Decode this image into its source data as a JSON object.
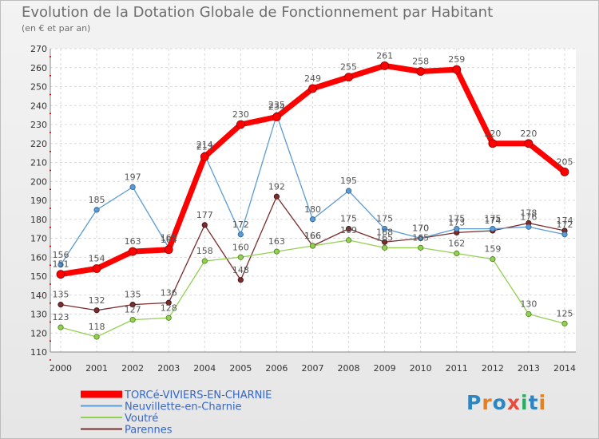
{
  "title": "Evolution de la Dotation Globale de Fonctionnement par Habitant",
  "subtitle": "(en € et par an)",
  "logo": {
    "text": "Proxiti",
    "colors": [
      "#2e86c1",
      "#e67e22",
      "#2e86c1",
      "#e74c3c",
      "#27ae60",
      "#2e86c1",
      "#e67e22"
    ]
  },
  "chart_data": {
    "type": "line",
    "title": "Evolution de la Dotation Globale de Fonctionnement par Habitant",
    "subtitle": "(en € et par an)",
    "xlabel": "",
    "ylabel": "",
    "x": [
      "2000",
      "2001",
      "2002",
      "2003",
      "2004",
      "2005",
      "2006",
      "2007",
      "2008",
      "2009",
      "2010",
      "2011",
      "2012",
      "2013",
      "2014"
    ],
    "yticks": [
      110,
      120,
      130,
      140,
      150,
      160,
      170,
      180,
      190,
      200,
      210,
      220,
      230,
      240,
      250,
      260,
      270
    ],
    "ylim": [
      110,
      270
    ],
    "grid": true,
    "legend_position": "bottom-left",
    "series": [
      {
        "name": "TORCé-VIVIERS-EN-CHARNIE",
        "color": "#ff0000",
        "values": [
          151,
          154,
          163,
          164,
          213,
          230,
          234,
          249,
          255,
          261,
          258,
          259,
          220,
          220,
          205
        ]
      },
      {
        "name": "Neuvillette-en-Charnie",
        "color": "#5b9bd5",
        "values": [
          156,
          185,
          197,
          165,
          214,
          172,
          235,
          180,
          195,
          175,
          170,
          175,
          175,
          176,
          172
        ]
      },
      {
        "name": "Voutré",
        "color": "#92d050",
        "values": [
          123,
          118,
          127,
          128,
          158,
          160,
          163,
          166,
          169,
          165,
          165,
          162,
          159,
          130,
          125
        ]
      },
      {
        "name": "Parennes",
        "color": "#7b2c2c",
        "values": [
          135,
          132,
          135,
          136,
          177,
          148,
          192,
          166,
          175,
          168,
          170,
          173,
          174,
          178,
          174
        ]
      }
    ]
  }
}
